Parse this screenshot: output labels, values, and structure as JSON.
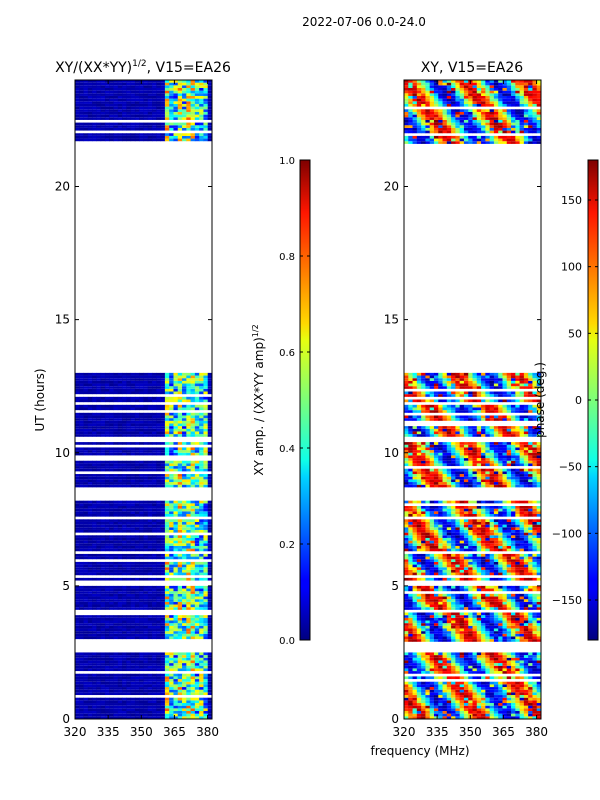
{
  "figure": {
    "suptitle": "2022-07-06 0.0-24.0",
    "shared_xlabel": "frequency (MHz)"
  },
  "chart_data": [
    {
      "type": "heatmap",
      "title": "XY/(XX*YY)^1/2, V15=EA26",
      "title_main": "XY/(XX*YY)",
      "title_sup": "1/2",
      "title_tail": ", V15=EA26",
      "xlabel": "",
      "ylabel": "UT (hours)",
      "xlim": [
        320,
        382
      ],
      "ylim": [
        0,
        24
      ],
      "xticks": [
        320,
        335,
        350,
        365,
        380
      ],
      "yticks": [
        0,
        5,
        10,
        15,
        20
      ],
      "xtick_labels": [
        "320",
        "335",
        "350",
        "365",
        "380"
      ],
      "ytick_labels": [
        "0",
        "5",
        "10",
        "15",
        "20"
      ],
      "colorscale": "jet",
      "data_bands_ut": [
        [
          0.0,
          2.5
        ],
        [
          2.9,
          4.0
        ],
        [
          4.1,
          5.0
        ],
        [
          5.2,
          6.2
        ],
        [
          6.3,
          8.2
        ],
        [
          8.7,
          10.4
        ],
        [
          10.6,
          11.8
        ],
        [
          11.9,
          13.0
        ],
        [
          21.6,
          24.0
        ]
      ],
      "bright_freq_range_mhz": [
        360,
        381
      ],
      "colorbar": {
        "label": "XY amp. / (XX*YY amp)^1/2",
        "label_main": "XY amp. / (XX*YY amp)",
        "label_sup": "1/2",
        "range": [
          0.0,
          1.0
        ],
        "ticks": [
          0.0,
          0.2,
          0.4,
          0.6,
          0.8,
          1.0
        ],
        "tick_labels": [
          "0.0",
          "0.2",
          "0.4",
          "0.6",
          "0.8",
          "1.0"
        ]
      }
    },
    {
      "type": "heatmap",
      "title": "XY, V15=EA26",
      "xlabel": "frequency (MHz)",
      "ylabel": "",
      "xlim": [
        320,
        382
      ],
      "ylim": [
        0,
        24
      ],
      "xticks": [
        320,
        335,
        350,
        365,
        380
      ],
      "yticks": [
        0,
        5,
        10,
        15,
        20
      ],
      "xtick_labels": [
        "320",
        "335",
        "350",
        "365",
        "380"
      ],
      "ytick_labels": [
        "0",
        "5",
        "10",
        "15",
        "20"
      ],
      "colorscale": "jet",
      "data_bands_ut": [
        [
          0.0,
          2.5
        ],
        [
          2.9,
          4.0
        ],
        [
          4.1,
          5.0
        ],
        [
          5.2,
          6.2
        ],
        [
          6.3,
          8.2
        ],
        [
          8.7,
          10.4
        ],
        [
          10.6,
          11.8
        ],
        [
          11.9,
          13.0
        ],
        [
          21.6,
          24.0
        ]
      ],
      "colorbar": {
        "label": "phase (deg.)",
        "range": [
          -180,
          180
        ],
        "ticks": [
          -150,
          -100,
          -50,
          0,
          50,
          100,
          150
        ],
        "tick_labels": [
          "−150",
          "−100",
          "−50",
          "0",
          "50",
          "100",
          "150"
        ]
      }
    }
  ]
}
